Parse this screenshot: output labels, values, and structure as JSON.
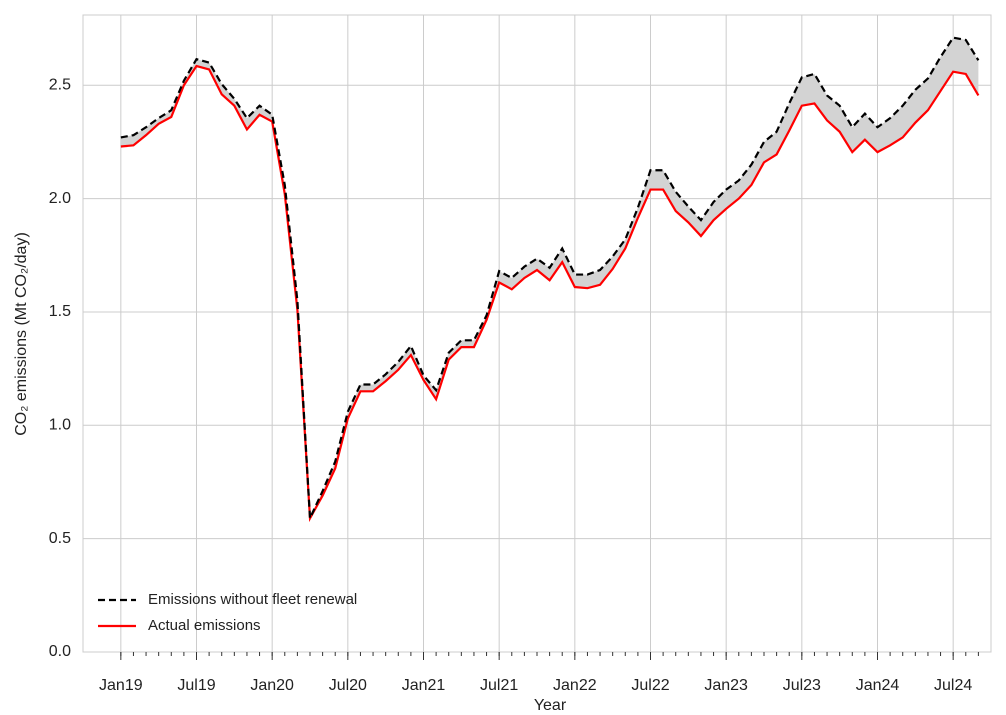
{
  "chart_data": {
    "type": "line",
    "xlabel": "Year",
    "ylabel": "CO₂ emissions (Mt CO₂/day)",
    "x": [
      "2019-01",
      "2019-02",
      "2019-03",
      "2019-04",
      "2019-05",
      "2019-06",
      "2019-07",
      "2019-08",
      "2019-09",
      "2019-10",
      "2019-11",
      "2019-12",
      "2020-01",
      "2020-02",
      "2020-03",
      "2020-04",
      "2020-05",
      "2020-06",
      "2020-07",
      "2020-08",
      "2020-09",
      "2020-10",
      "2020-11",
      "2020-12",
      "2021-01",
      "2021-02",
      "2021-03",
      "2021-04",
      "2021-05",
      "2021-06",
      "2021-07",
      "2021-08",
      "2021-09",
      "2021-10",
      "2021-11",
      "2021-12",
      "2022-01",
      "2022-02",
      "2022-03",
      "2022-04",
      "2022-05",
      "2022-06",
      "2022-07",
      "2022-08",
      "2022-09",
      "2022-10",
      "2022-11",
      "2022-12",
      "2023-01",
      "2023-02",
      "2023-03",
      "2023-04",
      "2023-05",
      "2023-06",
      "2023-07",
      "2023-08",
      "2023-09",
      "2023-10",
      "2023-11",
      "2023-12",
      "2024-01",
      "2024-02",
      "2024-03",
      "2024-04",
      "2024-05",
      "2024-06",
      "2024-07",
      "2024-08",
      "2024-09"
    ],
    "series": [
      {
        "name": "Emissions without fleet renewal",
        "color": "#000000",
        "dash": true,
        "values": [
          2.27,
          2.28,
          2.315,
          2.355,
          2.39,
          2.52,
          2.615,
          2.6,
          2.505,
          2.44,
          2.355,
          2.41,
          2.37,
          2.06,
          1.55,
          0.59,
          0.71,
          0.84,
          1.06,
          1.18,
          1.18,
          1.225,
          1.28,
          1.35,
          1.22,
          1.155,
          1.32,
          1.375,
          1.375,
          1.485,
          1.68,
          1.65,
          1.7,
          1.735,
          1.695,
          1.78,
          1.665,
          1.665,
          1.685,
          1.745,
          1.82,
          1.96,
          2.125,
          2.125,
          2.03,
          1.965,
          1.905,
          1.985,
          2.04,
          2.08,
          2.15,
          2.25,
          2.295,
          2.42,
          2.535,
          2.55,
          2.455,
          2.41,
          2.315,
          2.375,
          2.315,
          2.355,
          2.41,
          2.48,
          2.53,
          2.625,
          2.71,
          2.7,
          2.61
        ]
      },
      {
        "name": "Actual emissions",
        "color": "#ff0000",
        "dash": false,
        "values": [
          2.23,
          2.235,
          2.28,
          2.33,
          2.36,
          2.5,
          2.585,
          2.57,
          2.46,
          2.41,
          2.305,
          2.37,
          2.34,
          2.02,
          1.51,
          0.59,
          0.69,
          0.81,
          1.03,
          1.15,
          1.15,
          1.195,
          1.245,
          1.31,
          1.2,
          1.115,
          1.29,
          1.345,
          1.345,
          1.465,
          1.63,
          1.6,
          1.65,
          1.685,
          1.64,
          1.72,
          1.61,
          1.605,
          1.62,
          1.69,
          1.78,
          1.915,
          2.04,
          2.04,
          1.945,
          1.895,
          1.835,
          1.905,
          1.955,
          2.0,
          2.06,
          2.16,
          2.195,
          2.3,
          2.41,
          2.42,
          2.345,
          2.295,
          2.205,
          2.26,
          2.205,
          2.235,
          2.27,
          2.335,
          2.39,
          2.475,
          2.56,
          2.55,
          2.455
        ]
      }
    ],
    "fill_between": "#d3d3d3",
    "xlim": [
      "2018-10",
      "2024-10"
    ],
    "xticks": [
      {
        "value": "2019-01",
        "label": "Jan19"
      },
      {
        "value": "2019-07",
        "label": "Jul19"
      },
      {
        "value": "2020-01",
        "label": "Jan20"
      },
      {
        "value": "2020-07",
        "label": "Jul20"
      },
      {
        "value": "2021-01",
        "label": "Jan21"
      },
      {
        "value": "2021-07",
        "label": "Jul21"
      },
      {
        "value": "2022-01",
        "label": "Jan22"
      },
      {
        "value": "2022-07",
        "label": "Jul22"
      },
      {
        "value": "2023-01",
        "label": "Jan23"
      },
      {
        "value": "2023-07",
        "label": "Jul23"
      },
      {
        "value": "2024-01",
        "label": "Jan24"
      },
      {
        "value": "2024-07",
        "label": "Jul24"
      }
    ],
    "ylim": [
      0,
      2.81
    ],
    "yticks": [
      {
        "value": 0,
        "label": "0.0"
      },
      0.5,
      {
        "value": 1,
        "label": "1.0"
      },
      1.5,
      {
        "value": 2,
        "label": "2.0"
      },
      2.5
    ],
    "grid": true,
    "legend": "lower left"
  }
}
